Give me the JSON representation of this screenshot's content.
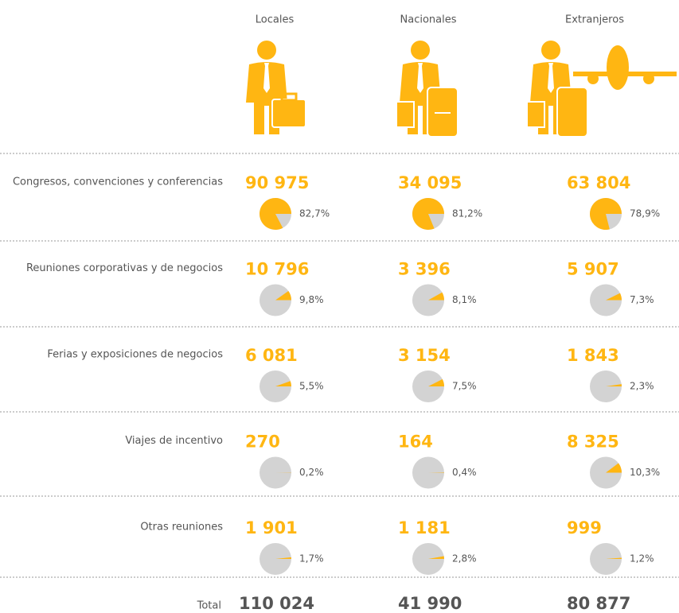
{
  "columns": [
    "Locales",
    "Nacionales",
    "Extranjeros"
  ],
  "color": "#ffb612",
  "rows": [
    {
      "label": "Congresos, convenciones y conferencias",
      "cells": [
        {
          "value": "90 975",
          "share": 82.7,
          "share_label": "82,7%"
        },
        {
          "value": "34 095",
          "share": 81.2,
          "share_label": "81,2%"
        },
        {
          "value": "63 804",
          "share": 78.9,
          "share_label": "78,9%"
        }
      ]
    },
    {
      "label": "Reuniones corporativas y de negocios",
      "cells": [
        {
          "value": "10 796",
          "share": 9.8,
          "share_label": "9,8%"
        },
        {
          "value": "3 396",
          "share": 8.1,
          "share_label": "8,1%"
        },
        {
          "value": "5 907",
          "share": 7.3,
          "share_label": "7,3%"
        }
      ]
    },
    {
      "label": "Ferias y exposiciones de negocios",
      "cells": [
        {
          "value": "6 081",
          "share": 5.5,
          "share_label": "5,5%"
        },
        {
          "value": "3 154",
          "share": 7.5,
          "share_label": "7,5%"
        },
        {
          "value": "1 843",
          "share": 2.3,
          "share_label": "2,3%"
        }
      ]
    },
    {
      "label": "Viajes de incentivo",
      "cells": [
        {
          "value": "270",
          "share": 0.2,
          "share_label": "0,2%"
        },
        {
          "value": "164",
          "share": 0.4,
          "share_label": "0,4%"
        },
        {
          "value": "8 325",
          "share": 10.3,
          "share_label": "10,3%"
        }
      ]
    },
    {
      "label": "Otras reuniones",
      "cells": [
        {
          "value": "1 901",
          "share": 1.7,
          "share_label": "1,7%"
        },
        {
          "value": "1 181",
          "share": 2.8,
          "share_label": "2,8%"
        },
        {
          "value": "999",
          "share": 1.2,
          "share_label": "1,2%"
        }
      ]
    }
  ],
  "total": {
    "label": "Total",
    "values": [
      "110 024",
      "41 990",
      "80 877"
    ]
  }
}
